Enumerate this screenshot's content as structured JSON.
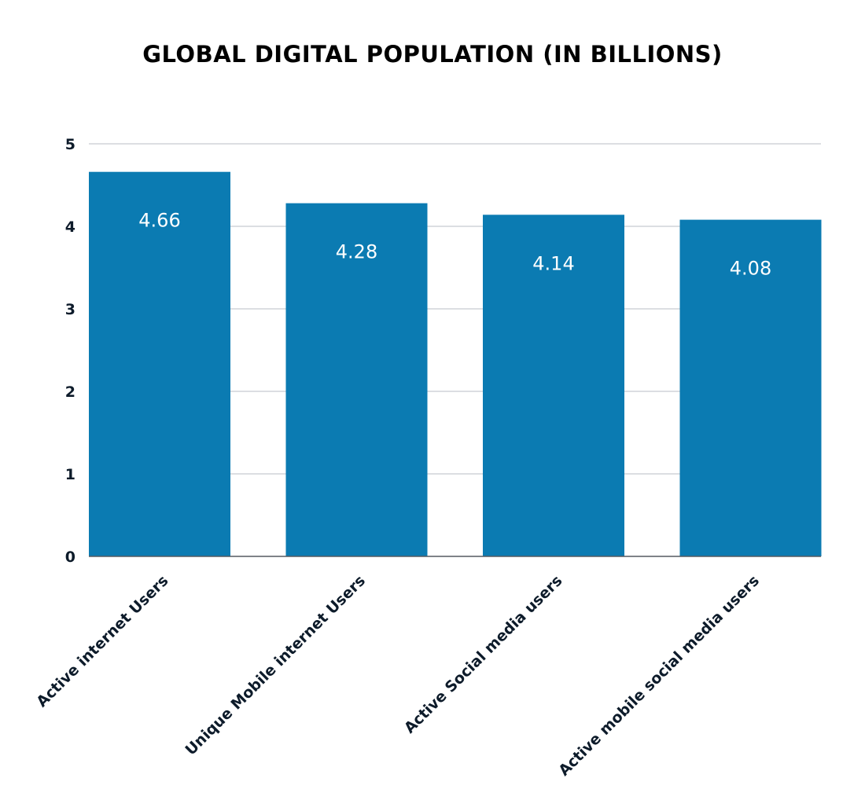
{
  "chart_data": {
    "type": "bar",
    "title": "GLOBAL DIGITAL POPULATION (IN BILLIONS)",
    "categories": [
      "Active internet Users",
      "Unique Mobile internet Users",
      "Active Social media users",
      "Active mobile social media users"
    ],
    "values": [
      4.66,
      4.28,
      4.14,
      4.08
    ],
    "data_labels": [
      "4.66",
      "4.28",
      "4.14",
      "4.08"
    ],
    "xlabel": "",
    "ylabel": "",
    "ylim": [
      0,
      5
    ],
    "yticks": [
      "0",
      "1",
      "2",
      "3",
      "4",
      "5"
    ],
    "grid": true,
    "legend": "none",
    "colors": {
      "bar": "#0b7bb2",
      "grid": "#d0d3d8",
      "text": "#0d1b2a",
      "label": "#ffffff"
    }
  }
}
